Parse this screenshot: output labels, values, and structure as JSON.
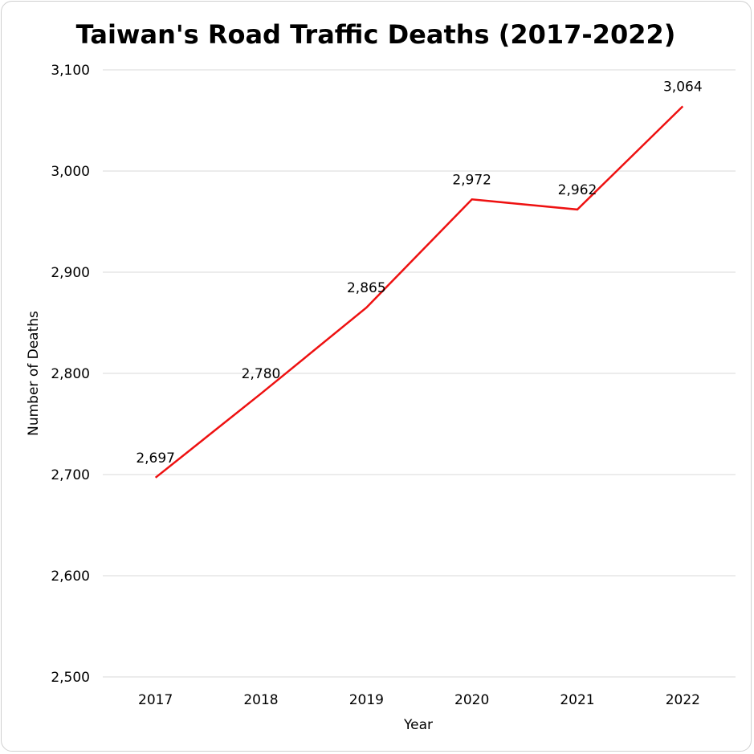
{
  "chart_data": {
    "type": "line",
    "title": "Taiwan's Road Traffic Deaths (2017-2022)",
    "xlabel": "Year",
    "ylabel": "Number of Deaths",
    "categories": [
      "2017",
      "2018",
      "2019",
      "2020",
      "2021",
      "2022"
    ],
    "series": [
      {
        "values": [
          2697,
          2780,
          2865,
          2972,
          2962,
          3064
        ],
        "labels": [
          "2,697",
          "2,780",
          "2,865",
          "2,972",
          "2,962",
          "3,064"
        ],
        "color": "#ee1111"
      }
    ],
    "ylim": [
      2500,
      3100
    ],
    "yticks": [
      2500,
      2600,
      2700,
      2800,
      2900,
      3000,
      3100
    ],
    "ytick_labels": [
      "2,500",
      "2,600",
      "2,700",
      "2,800",
      "2,900",
      "3,000",
      "3,100"
    ],
    "grid": true,
    "legend": "none"
  }
}
